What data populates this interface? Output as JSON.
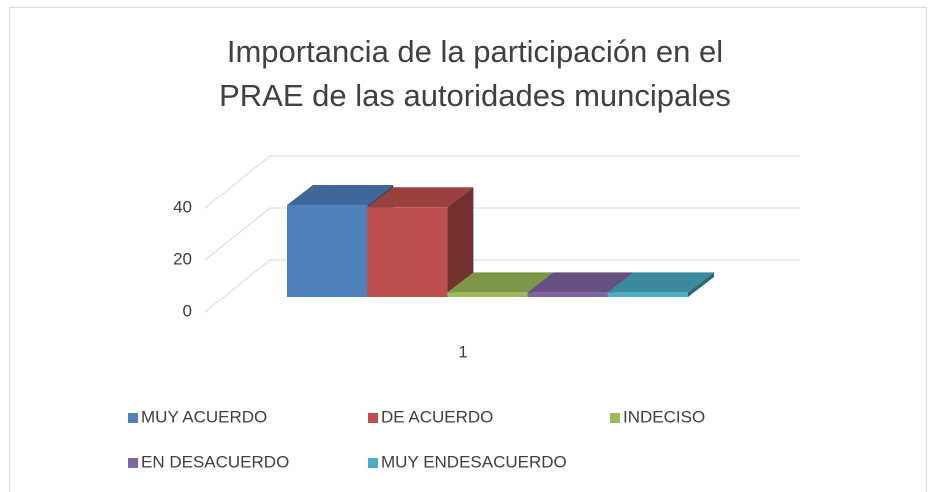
{
  "chart_data": {
    "type": "bar3d",
    "title": "Importancia  de la participación en el  PRAE de las autoridades muncipales",
    "categories": [
      "1"
    ],
    "series": [
      {
        "name": "MUY ACUERDO",
        "color": "#4f81bd",
        "values": [
          40
        ]
      },
      {
        "name": "DE ACUERDO",
        "color": "#c0504d",
        "values": [
          39
        ]
      },
      {
        "name": "INDECISO",
        "color": "#9bbb59",
        "values": [
          2
        ]
      },
      {
        "name": "EN DESACUERDO",
        "color": "#8064a2",
        "values": [
          2
        ]
      },
      {
        "name": "MUY ENDESACUERDO",
        "color": "#4bacc6",
        "values": [
          2
        ]
      }
    ],
    "ylim": [
      0,
      60
    ],
    "yticks": [
      0,
      20,
      40
    ],
    "grid": true,
    "legend": "bottom"
  }
}
